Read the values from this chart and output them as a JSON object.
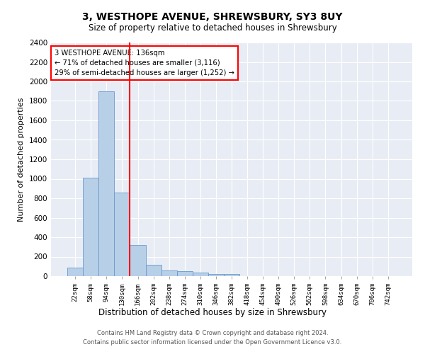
{
  "title1": "3, WESTHOPE AVENUE, SHREWSBURY, SY3 8UY",
  "title2": "Size of property relative to detached houses in Shrewsbury",
  "xlabel": "Distribution of detached houses by size in Shrewsbury",
  "ylabel": "Number of detached properties",
  "bar_labels": [
    "22sqm",
    "58sqm",
    "94sqm",
    "130sqm",
    "166sqm",
    "202sqm",
    "238sqm",
    "274sqm",
    "310sqm",
    "346sqm",
    "382sqm",
    "418sqm",
    "454sqm",
    "490sqm",
    "526sqm",
    "562sqm",
    "598sqm",
    "634sqm",
    "670sqm",
    "706sqm",
    "742sqm"
  ],
  "bar_values": [
    90,
    1010,
    1900,
    860,
    320,
    115,
    55,
    48,
    35,
    20,
    20,
    0,
    0,
    0,
    0,
    0,
    0,
    0,
    0,
    0,
    0
  ],
  "bar_color": "#b8cfe8",
  "bar_edge_color": "#6699cc",
  "red_line_index": 3.5,
  "annotation_text": "3 WESTHOPE AVENUE: 136sqm\n← 71% of detached houses are smaller (3,116)\n29% of semi-detached houses are larger (1,252) →",
  "annotation_box_color": "white",
  "annotation_box_edge": "red",
  "ylim": [
    0,
    2400
  ],
  "yticks": [
    0,
    200,
    400,
    600,
    800,
    1000,
    1200,
    1400,
    1600,
    1800,
    2000,
    2200,
    2400
  ],
  "background_color": "#e8edf5",
  "footer": "Contains HM Land Registry data © Crown copyright and database right 2024.\nContains public sector information licensed under the Open Government Licence v3.0."
}
